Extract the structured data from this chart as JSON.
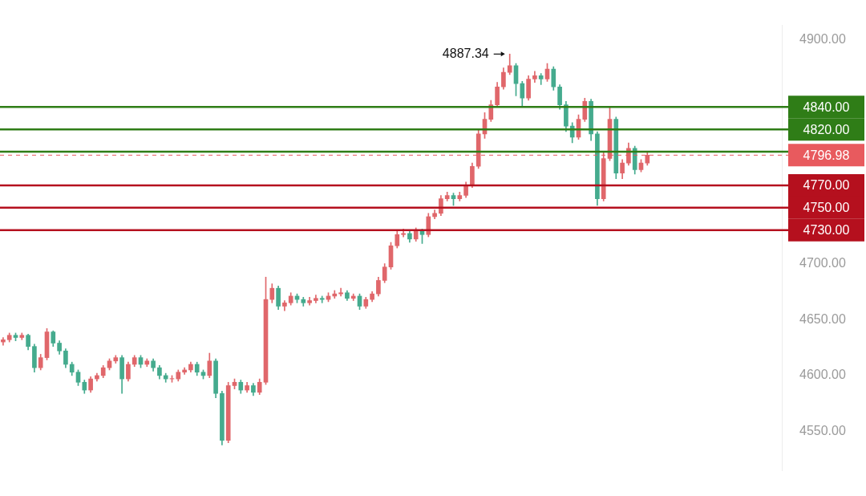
{
  "chart_data": {
    "type": "candlestick",
    "categories": [
      null,
      null,
      null,
      null,
      null,
      null,
      null,
      null,
      null,
      null,
      null,
      null,
      null,
      null,
      null,
      null,
      null,
      null,
      null,
      null,
      null,
      null,
      null,
      null,
      null,
      null,
      null,
      null,
      null,
      null,
      null,
      null,
      null,
      null,
      null,
      null,
      null,
      null,
      null,
      null,
      null,
      null,
      null,
      null,
      null,
      null,
      null,
      null,
      null,
      null,
      null,
      null,
      null,
      null,
      null,
      null,
      null,
      null,
      null,
      null,
      null,
      null,
      null,
      null,
      null,
      null,
      null,
      null,
      null,
      null,
      null,
      null,
      null,
      null,
      null,
      null,
      null,
      null,
      null,
      null,
      null,
      null,
      null,
      null,
      null,
      null,
      null,
      null,
      null,
      null,
      null,
      null,
      null,
      null,
      null,
      null,
      null,
      null,
      null,
      null,
      null,
      null,
      null,
      null,
      null,
      null,
      null,
      null,
      null,
      null,
      null,
      null,
      null,
      null,
      null,
      null,
      null,
      null,
      null,
      null,
      null,
      null,
      null,
      null,
      null
    ],
    "ohlc": [
      [
        4630,
        4634,
        4627,
        4632
      ],
      [
        4632,
        4638,
        4630,
        4636
      ],
      [
        4636,
        4638,
        4631,
        4634
      ],
      [
        4634,
        4638,
        4632,
        4636
      ],
      [
        4636,
        4637,
        4623,
        4626
      ],
      [
        4626,
        4628,
        4603,
        4607
      ],
      [
        4607,
        4619,
        4605,
        4616
      ],
      [
        4616,
        4642,
        4614,
        4639
      ],
      [
        4639,
        4640,
        4626,
        4629
      ],
      [
        4629,
        4631,
        4619,
        4622
      ],
      [
        4622,
        4624,
        4607,
        4610
      ],
      [
        4610,
        4612,
        4600,
        4603
      ],
      [
        4603,
        4605,
        4591,
        4594
      ],
      [
        4594,
        4596,
        4584,
        4587
      ],
      [
        4587,
        4599,
        4585,
        4597
      ],
      [
        4597,
        4602,
        4595,
        4600
      ],
      [
        4600,
        4609,
        4598,
        4607
      ],
      [
        4607,
        4615,
        4605,
        4613
      ],
      [
        4613,
        4618,
        4611,
        4616
      ],
      [
        4616,
        4618,
        4584,
        4597
      ],
      [
        4597,
        4612,
        4595,
        4610
      ],
      [
        4610,
        4618,
        4608,
        4616
      ],
      [
        4616,
        4618,
        4607,
        4610
      ],
      [
        4610,
        4615,
        4608,
        4613
      ],
      [
        4613,
        4615,
        4604,
        4607
      ],
      [
        4607,
        4609,
        4597,
        4600
      ],
      [
        4600,
        4602,
        4594,
        4597
      ],
      [
        4597,
        4600,
        4594,
        4597
      ],
      [
        4597,
        4605,
        4595,
        4603
      ],
      [
        4603,
        4607,
        4601,
        4605
      ],
      [
        4605,
        4612,
        4603,
        4610
      ],
      [
        4610,
        4612,
        4600,
        4603
      ],
      [
        4603,
        4605,
        4597,
        4600
      ],
      [
        4600,
        4620,
        4598,
        4613
      ],
      [
        4613,
        4615,
        4580,
        4584
      ],
      [
        4584,
        4586,
        4538,
        4542
      ],
      [
        4542,
        4594,
        4540,
        4591
      ],
      [
        4591,
        4597,
        4588,
        4594
      ],
      [
        4594,
        4596,
        4584,
        4587
      ],
      [
        4587,
        4594,
        4585,
        4591
      ],
      [
        4591,
        4593,
        4582,
        4585
      ],
      [
        4585,
        4597,
        4583,
        4594
      ],
      [
        4594,
        4688,
        4592,
        4668
      ],
      [
        4668,
        4682,
        4665,
        4678
      ],
      [
        4678,
        4680,
        4659,
        4662
      ],
      [
        4662,
        4667,
        4658,
        4665
      ],
      [
        4665,
        4674,
        4663,
        4671
      ],
      [
        4671,
        4673,
        4665,
        4668
      ],
      [
        4668,
        4670,
        4662,
        4665
      ],
      [
        4665,
        4670,
        4663,
        4667
      ],
      [
        4667,
        4672,
        4665,
        4669
      ],
      [
        4669,
        4671,
        4665,
        4668
      ],
      [
        4668,
        4674,
        4666,
        4671
      ],
      [
        4671,
        4676,
        4669,
        4673
      ],
      [
        4673,
        4678,
        4671,
        4674
      ],
      [
        4674,
        4676,
        4667,
        4669
      ],
      [
        4669,
        4673,
        4667,
        4671
      ],
      [
        4671,
        4673,
        4659,
        4662
      ],
      [
        4662,
        4670,
        4660,
        4668
      ],
      [
        4668,
        4675,
        4666,
        4673
      ],
      [
        4673,
        4688,
        4671,
        4685
      ],
      [
        4685,
        4700,
        4683,
        4697
      ],
      [
        4697,
        4719,
        4695,
        4716
      ],
      [
        4716,
        4729,
        4714,
        4726
      ],
      [
        4726,
        4731,
        4724,
        4727
      ],
      [
        4727,
        4729,
        4719,
        4722
      ],
      [
        4722,
        4732,
        4720,
        4729
      ],
      [
        4729,
        4731,
        4718,
        4726
      ],
      [
        4726,
        4745,
        4724,
        4742
      ],
      [
        4742,
        4748,
        4740,
        4745
      ],
      [
        4745,
        4761,
        4743,
        4758
      ],
      [
        4758,
        4764,
        4756,
        4761
      ],
      [
        4761,
        4763,
        4752,
        4758
      ],
      [
        4758,
        4764,
        4756,
        4761
      ],
      [
        4761,
        4773,
        4759,
        4770
      ],
      [
        4770,
        4790,
        4768,
        4787
      ],
      [
        4787,
        4820,
        4785,
        4816
      ],
      [
        4816,
        4835,
        4812,
        4829
      ],
      [
        4829,
        4846,
        4827,
        4842
      ],
      [
        4842,
        4862,
        4840,
        4858
      ],
      [
        4858,
        4875,
        4856,
        4871
      ],
      [
        4871,
        4887.34,
        4869,
        4877
      ],
      [
        4877,
        4879,
        4850,
        4861
      ],
      [
        4861,
        4863,
        4840,
        4848
      ],
      [
        4848,
        4868,
        4846,
        4865
      ],
      [
        4865,
        4872,
        4862,
        4868
      ],
      [
        4868,
        4870,
        4860,
        4865
      ],
      [
        4865,
        4879,
        4863,
        4874
      ],
      [
        4874,
        4876,
        4855,
        4858
      ],
      [
        4858,
        4860,
        4838,
        4842
      ],
      [
        4842,
        4845,
        4818,
        4823
      ],
      [
        4823,
        4826,
        4808,
        4813
      ],
      [
        4813,
        4833,
        4811,
        4829
      ],
      [
        4829,
        4848,
        4827,
        4845
      ],
      [
        4845,
        4847,
        4810,
        4816
      ],
      [
        4816,
        4818,
        4752,
        4758
      ],
      [
        4758,
        4800,
        4756,
        4794
      ],
      [
        4794,
        4840,
        4792,
        4829
      ],
      [
        4829,
        4831,
        4776,
        4781
      ],
      [
        4781,
        4793,
        4776,
        4790
      ],
      [
        4790,
        4808,
        4788,
        4803
      ],
      [
        4803,
        4805,
        4780,
        4784
      ],
      [
        4784,
        4793,
        4782,
        4790
      ],
      [
        4790,
        4800,
        4788,
        4797
      ],
      null,
      null,
      null,
      null,
      null,
      null,
      null,
      null,
      null,
      null,
      null,
      null,
      null,
      null,
      null,
      null,
      null,
      null,
      null,
      null,
      null
    ],
    "ylim": [
      4515,
      4913
    ],
    "yticks": [
      {
        "value": 4550,
        "label": "4550.00"
      },
      {
        "value": 4600,
        "label": "4600.00"
      },
      {
        "value": 4650,
        "label": "4650.00"
      },
      {
        "value": 4700,
        "label": "4700.00"
      },
      {
        "value": 4900,
        "label": "4900.00"
      }
    ],
    "tick_labels": "y",
    "grid": false,
    "legend": false,
    "ref_lines": [
      {
        "axis": "y",
        "value": 4840,
        "label": "4840.00",
        "color": "#2f7d17"
      },
      {
        "axis": "y",
        "value": 4820,
        "label": "4820.00",
        "color": "#2f7d17"
      },
      {
        "axis": "y",
        "value": 4800,
        "label": null,
        "color": "#2f7d17"
      },
      {
        "axis": "y",
        "value": 4796.98,
        "label": "4796.98",
        "color": "#e85a5e",
        "line_style": "dashed"
      },
      {
        "axis": "y",
        "value": 4770,
        "label": "4770.00",
        "color": "#b5101e"
      },
      {
        "axis": "y",
        "value": 4750,
        "label": "4750.00",
        "color": "#b5101e"
      },
      {
        "axis": "y",
        "value": 4730,
        "label": "4730.00",
        "color": "#b5101e"
      }
    ],
    "annotations": [
      "4887.34"
    ]
  }
}
